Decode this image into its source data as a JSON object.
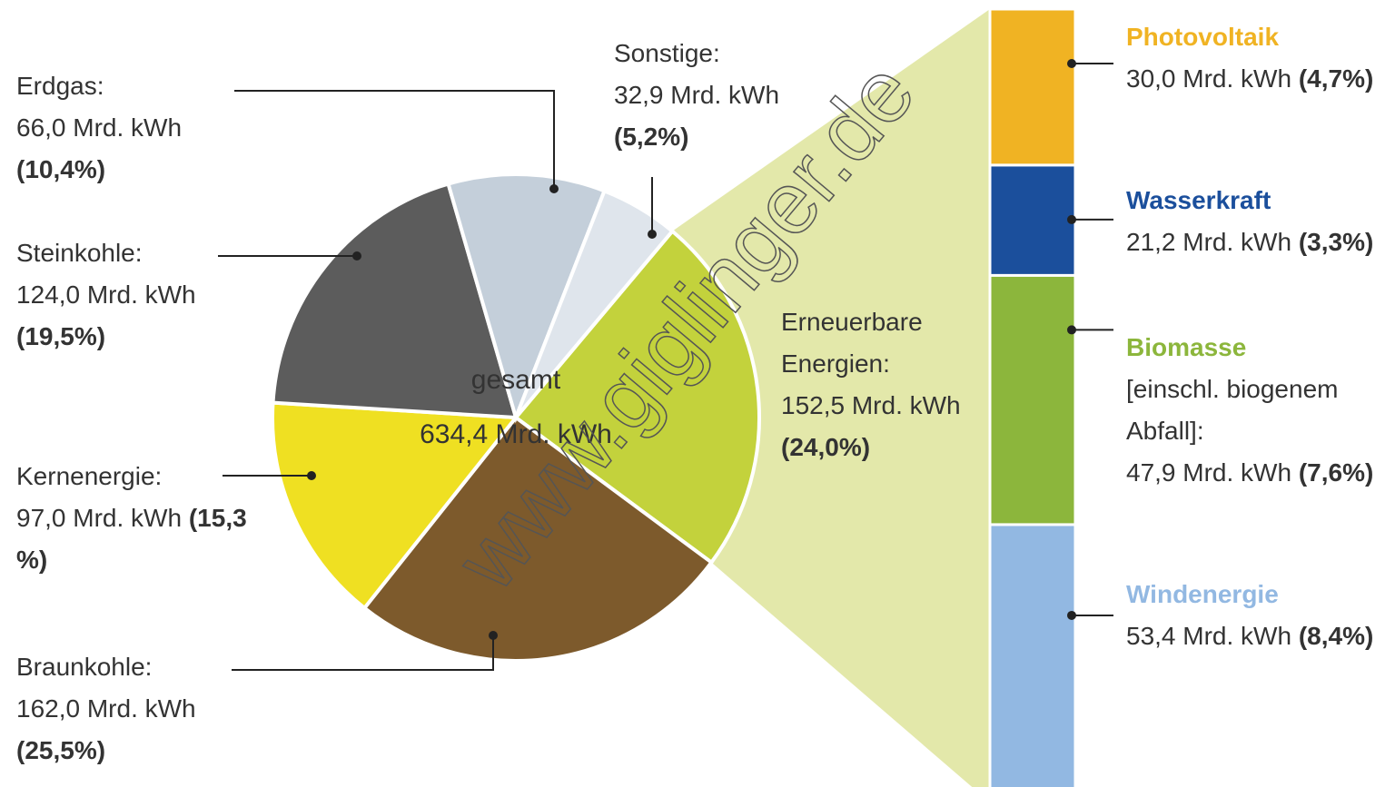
{
  "watermark": "www.giglinger.de",
  "chart_data": [
    {
      "type": "pie",
      "center_label": "gesamt",
      "total_label": "634,4 Mrd. kWh",
      "categories": [
        "Erneuerbare Energien:",
        "Braunkohle:",
        "Kernenergie:",
        "Steinkohle:",
        "Erdgas:",
        "Sonstige:"
      ],
      "values": [
        152.5,
        162.0,
        97.0,
        124.0,
        66.0,
        32.9
      ],
      "value_labels": [
        "152,5 Mrd. kWh",
        "162,0 Mrd. kWh",
        "97,0 Mrd. kWh",
        "124,0 Mrd. kWh",
        "66,0 Mrd. kWh",
        "32,9 Mrd. kWh"
      ],
      "percent_labels": [
        "(24,0%)",
        "(25,5%)",
        "(15,3 %)",
        "(19,5%)",
        "(10,4%)",
        "(5,2%)"
      ],
      "colors": [
        "#c3d23c",
        "#7d5a2c",
        "#efe022",
        "#5c5c5c",
        "#c4cfda",
        "#dfe5ec"
      ]
    },
    {
      "type": "stacked_bar",
      "categories": [
        "Photovoltaik",
        "Wasserkraft",
        "Biomasse",
        "Windenergie"
      ],
      "notes": {
        "2": "[einschl. biogenem Abfall]:"
      },
      "values": [
        30.0,
        21.2,
        47.9,
        53.4
      ],
      "value_labels": [
        "30,0 Mrd. kWh",
        "21,2 Mrd. kWh",
        "47,9 Mrd. kWh",
        "53,4 Mrd. kWh"
      ],
      "percent_labels": [
        "(4,7%)",
        "(3,3%)",
        "(7,6%)",
        "(8,4%)"
      ],
      "colors": [
        "#f0b323",
        "#1b4f9c",
        "#8cb63c",
        "#92b8e2"
      ]
    }
  ]
}
